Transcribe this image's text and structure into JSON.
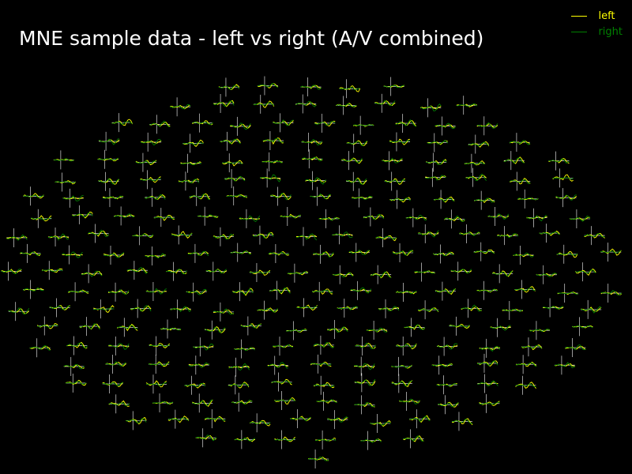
{
  "chart_data": {
    "type": "line",
    "title": "MNE sample data - left vs right (A/V combined)",
    "layout": "sensor topography (one small evoked plot per sensor)",
    "series": [
      {
        "name": "left",
        "color": "#ffff00"
      },
      {
        "name": "right",
        "color": "#008000"
      }
    ],
    "axis_color": "#ffffff",
    "background": "#000000",
    "xlabel": "",
    "ylabel": ""
  }
}
